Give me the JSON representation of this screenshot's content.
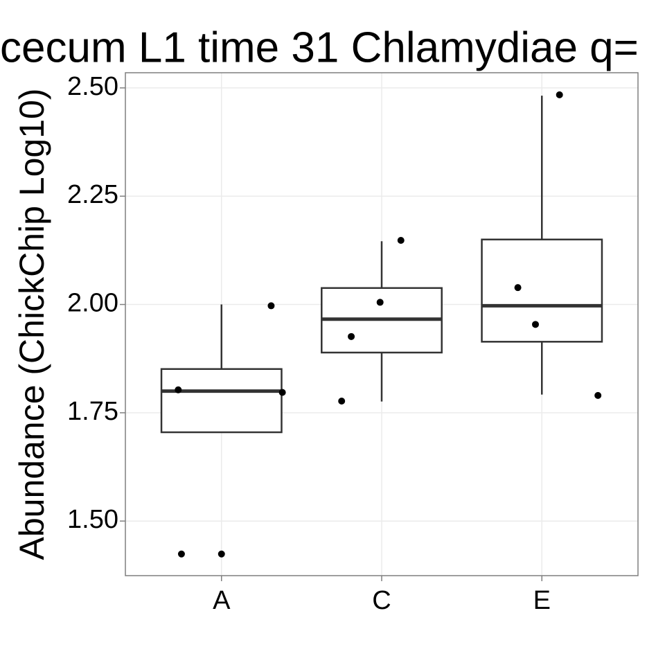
{
  "chart_data": {
    "type": "box",
    "title": "cecum L1 time 31 Chlamydiae q=",
    "y_label": "Abundance (ChickChip Log10)",
    "categories": [
      "A",
      "C",
      "E"
    ],
    "boxes": [
      {
        "whisker_low": 1.705,
        "q1": 1.705,
        "median": 1.8,
        "q3": 1.851,
        "whisker_high": 2.0,
        "points": [
          1.803,
          1.424,
          1.424,
          1.997,
          1.797
        ]
      },
      {
        "whisker_low": 1.776,
        "q1": 1.889,
        "median": 1.966,
        "q3": 2.038,
        "whisker_high": 2.146,
        "points": [
          1.777,
          1.926,
          2.005,
          2.148
        ]
      },
      {
        "whisker_low": 1.792,
        "q1": 1.914,
        "median": 1.997,
        "q3": 2.15,
        "whisker_high": 2.482,
        "points": [
          2.039,
          1.954,
          2.484,
          1.79
        ]
      }
    ],
    "box_color": "#333333",
    "point_color": "#000000",
    "ylim": [
      1.374,
      2.535
    ],
    "yticks": [
      {
        "value": 1.5,
        "label": "1.50"
      },
      1.75,
      {
        "value": 2,
        "label": "2.00"
      },
      2.25,
      {
        "value": 2.5,
        "label": "2.50"
      }
    ],
    "grid": true
  }
}
